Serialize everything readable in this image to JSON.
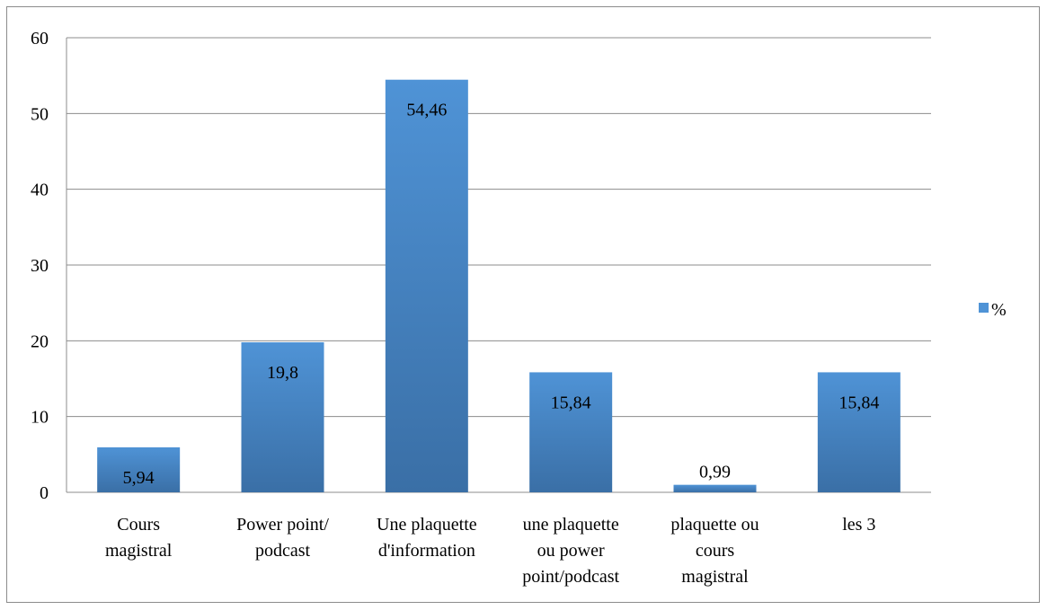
{
  "chart_data": {
    "type": "bar",
    "title": "",
    "xlabel": "",
    "ylabel": "",
    "categories": [
      [
        "Cours",
        "magistral"
      ],
      [
        "Power point/",
        "podcast"
      ],
      [
        "Une plaquette",
        "d'information"
      ],
      [
        "une plaquette",
        "ou power",
        "point/podcast"
      ],
      [
        "plaquette ou",
        "cours",
        "magistral"
      ],
      [
        "les 3"
      ]
    ],
    "series": [
      {
        "name": "%",
        "values": [
          5.94,
          19.8,
          54.46,
          15.84,
          0.99,
          15.84
        ]
      }
    ],
    "data_labels": [
      "5,94",
      "19,8",
      "54,46",
      "15,84",
      "0,99",
      "15,84"
    ],
    "ylim": [
      0,
      60
    ],
    "yticks": [
      0,
      10,
      20,
      30,
      40,
      50,
      60
    ],
    "grid": true,
    "legend": {
      "position": "right"
    },
    "colors": {
      "bar_top": "#4f93d6",
      "bar_bottom": "#3a6fa6",
      "grid": "#8c8c8c"
    }
  }
}
